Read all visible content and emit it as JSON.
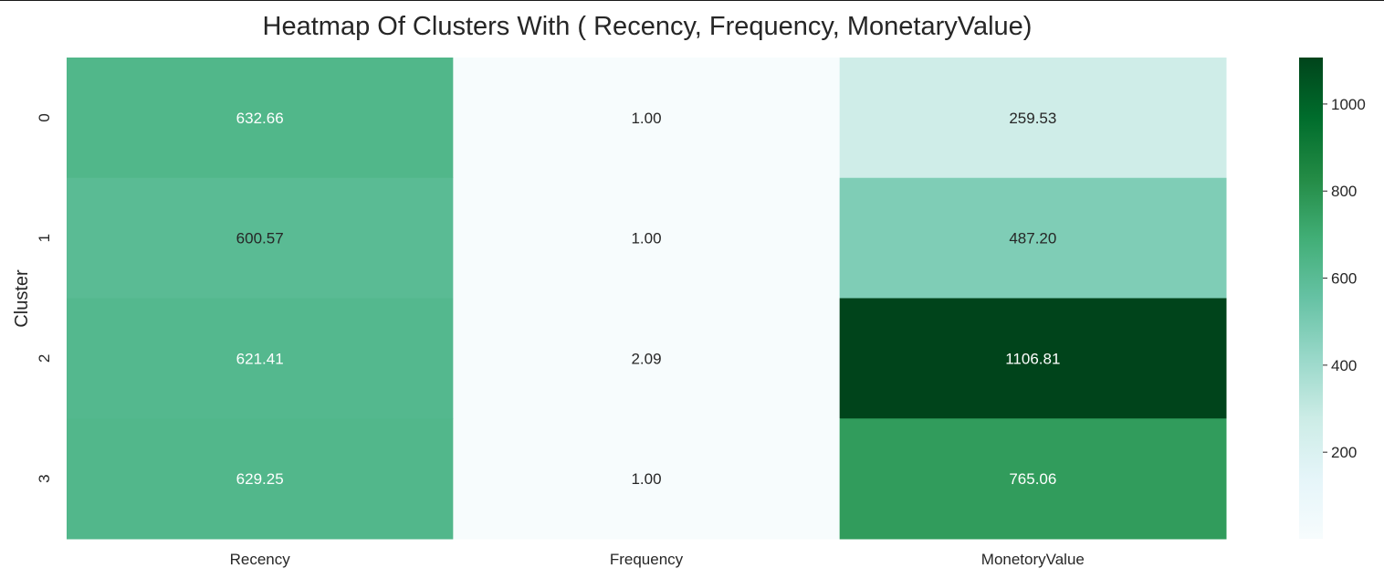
{
  "chart_data": {
    "type": "heatmap",
    "title": "Heatmap Of Clusters With ( Recency, Frequency, MonetaryValue)",
    "xlabel": "",
    "ylabel": "Cluster",
    "x_categories": [
      "Recency",
      "Frequency",
      "MonetoryValue"
    ],
    "y_categories": [
      "0",
      "1",
      "2",
      "3"
    ],
    "values": [
      [
        632.66,
        1.0,
        259.53
      ],
      [
        600.57,
        1.0,
        487.2
      ],
      [
        621.41,
        2.09,
        1106.81
      ],
      [
        629.25,
        1.0,
        765.06
      ]
    ],
    "value_format": "0.00",
    "colormap": "BuGn",
    "color_range": [
      1.0,
      1106.81
    ],
    "colorbar": {
      "ticks": [
        200,
        400,
        600,
        800,
        1000
      ],
      "tick_labels": [
        "200",
        "400",
        "600",
        "800",
        "1000"
      ],
      "position": "right"
    },
    "annot_color_light": "#ffffff",
    "annot_color_dark": "#262626",
    "grid": false,
    "legend": "none"
  }
}
